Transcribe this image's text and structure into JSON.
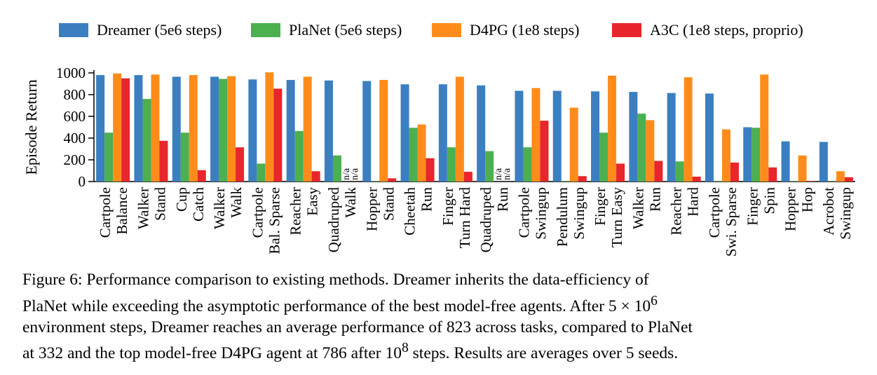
{
  "chart_data": {
    "type": "bar",
    "ylabel": "Episode Return",
    "ylim": [
      0,
      1000
    ],
    "yticks": [
      0,
      200,
      400,
      600,
      800,
      1000
    ],
    "legend_position": "top",
    "categories": [
      [
        "Cartpole",
        "Balance"
      ],
      [
        "Walker",
        "Stand"
      ],
      [
        "Cup",
        "Catch"
      ],
      [
        "Walker",
        "Walk"
      ],
      [
        "Cartpole",
        "Bal. Sparse"
      ],
      [
        "Reacher",
        "Easy"
      ],
      [
        "Quadruped",
        "Walk"
      ],
      [
        "Hopper",
        "Stand"
      ],
      [
        "Cheetah",
        "Run"
      ],
      [
        "Finger",
        "Turn Hard"
      ],
      [
        "Quadruped",
        "Run"
      ],
      [
        "Cartpole",
        "Swingup"
      ],
      [
        "Pendulum",
        "Swingup"
      ],
      [
        "Finger",
        "Turn Easy"
      ],
      [
        "Walker",
        "Run"
      ],
      [
        "Reacher",
        "Hard"
      ],
      [
        "Cartpole",
        "Swi. Sparse"
      ],
      [
        "Finger",
        "Spin"
      ],
      [
        "Hopper",
        "Hop"
      ],
      [
        "Acrobot",
        "Swingup"
      ]
    ],
    "series": [
      {
        "name": "Dreamer (5e6 steps)",
        "color": "#3b7fc0",
        "values": [
          980,
          980,
          965,
          965,
          940,
          935,
          930,
          925,
          895,
          895,
          885,
          835,
          835,
          830,
          825,
          815,
          810,
          500,
          370,
          365
        ]
      },
      {
        "name": "PlaNet (5e6 steps)",
        "color": "#4caf50",
        "values": [
          450,
          760,
          450,
          945,
          165,
          465,
          240,
          5,
          495,
          315,
          280,
          315,
          5,
          450,
          625,
          185,
          5,
          495,
          5,
          5
        ]
      },
      {
        "name": "D4PG (1e8 steps)",
        "color": "#ff8c1a",
        "values": [
          995,
          985,
          980,
          970,
          1005,
          965,
          null,
          935,
          525,
          965,
          null,
          860,
          680,
          975,
          565,
          960,
          480,
          985,
          240,
          95
        ]
      },
      {
        "name": "A3C (1e8 steps, proprio)",
        "color": "#e8262b",
        "values": [
          950,
          375,
          105,
          315,
          855,
          95,
          null,
          30,
          215,
          90,
          null,
          560,
          50,
          165,
          190,
          45,
          175,
          130,
          5,
          40
        ]
      }
    ],
    "na_label": "n/a"
  },
  "caption": {
    "line1": "Figure 6: Performance comparison to existing methods. Dreamer inherits the data-efficiency of",
    "line2a": "PlaNet while exceeding the asymptotic performance of the best model-free agents. After 5 × 10",
    "line2sup": "6",
    "line3": "environment steps, Dreamer reaches an average performance of 823 across tasks, compared to PlaNet",
    "line4a": "at 332 and the top model-free D4PG agent at 786 after 10",
    "line4sup": "8",
    "line4b": " steps. Results are averages over 5 seeds."
  }
}
